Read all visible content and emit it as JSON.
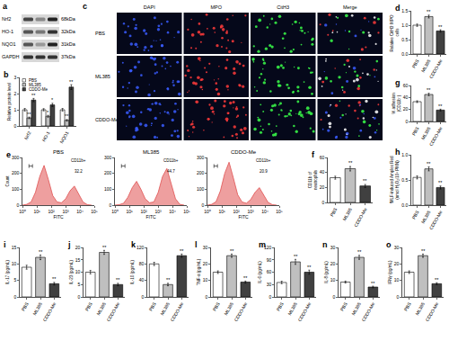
{
  "blot": {
    "panel": "a",
    "proteins": [
      {
        "name": "Nrf2",
        "size": "68kDa"
      },
      {
        "name": "HO-1",
        "size": "32kDa"
      },
      {
        "name": "NQO1",
        "size": "31kDa"
      },
      {
        "name": "GAPDH",
        "size": "37kDa"
      }
    ]
  },
  "images": {
    "panel": "c",
    "channels": [
      "DAPI",
      "MPO",
      "CitH3",
      "Merge"
    ],
    "groups": [
      "PBS",
      "ML385",
      "CDDO-Me"
    ]
  },
  "chart_data": [
    {
      "type": "bar",
      "panel": "b",
      "ylabel": [
        "Relative protein level"
      ],
      "categories": [
        "Nrf2",
        "HO-1",
        "NQO1"
      ],
      "series": [
        {
          "name": "PBS",
          "color": "#ffffff",
          "values": [
            1.0,
            1.0,
            1.0
          ],
          "errors": [
            0.08,
            0.07,
            0.08
          ],
          "significance": [
            null,
            null,
            null
          ]
        },
        {
          "name": "ML385",
          "color": "#bfbfbf",
          "values": [
            0.5,
            0.6,
            0.35
          ],
          "errors": [
            0.05,
            0.06,
            0.05
          ],
          "significance": [
            "**",
            "*",
            "**"
          ]
        },
        {
          "name": "CDDO-Me",
          "color": "#404040",
          "values": [
            1.6,
            1.3,
            2.4
          ],
          "errors": [
            0.1,
            0.1,
            0.15
          ],
          "significance": [
            "**",
            "*",
            "**"
          ]
        }
      ],
      "ylim": [
        0,
        3
      ],
      "yticks": [
        0,
        1,
        2,
        3
      ],
      "legend": "top left"
    },
    {
      "type": "bar",
      "panel": "d",
      "ylabel": [
        "Relative CitH3⁺MPO⁺",
        "cells"
      ],
      "categories": [
        "PBS",
        "ML385",
        "CDDO-Me"
      ],
      "values": [
        1.0,
        1.3,
        0.8
      ],
      "errors": [
        0.04,
        0.05,
        0.04
      ],
      "colors": [
        "#ffffff",
        "#bfbfbf",
        "#404040"
      ],
      "significance": [
        null,
        "**",
        "**"
      ],
      "ylim": [
        0,
        1.5
      ],
      "yticks": [
        {
          "value": 0,
          "label": "0.0"
        },
        0.5,
        {
          "value": 1,
          "label": "1.0"
        },
        1.5
      ]
    },
    {
      "type": "bar",
      "panel": "g",
      "ylabel": [
        "% adhesion",
        "(CD11b⁺)"
      ],
      "categories": [
        "PBS",
        "ML385",
        "CDDO-Me"
      ],
      "values": [
        33,
        45,
        19
      ],
      "errors": [
        1.5,
        2,
        1.5
      ],
      "colors": [
        "#ffffff",
        "#bfbfbf",
        "#404040"
      ],
      "significance": [
        null,
        "**",
        "**"
      ],
      "ylim": [
        0,
        60
      ],
      "yticks": [
        0,
        20,
        40,
        60
      ]
    },
    {
      "type": "line",
      "panel": "e",
      "title": "PBS",
      "xlabel": "FITC",
      "ylabel": [
        "Count"
      ],
      "log": "x",
      "x": [
        1,
        2,
        4,
        8,
        16,
        32,
        64,
        128,
        256,
        512,
        1024,
        2048,
        4096,
        8192,
        16384,
        32768,
        65536
      ],
      "values": [
        0,
        5,
        20,
        80,
        180,
        250,
        160,
        60,
        20,
        15,
        40,
        90,
        120,
        70,
        20,
        3,
        0
      ],
      "color": "#e05050",
      "gate": {
        "range": [
          700,
          100000
        ],
        "label": "CD11b+",
        "value": 32.2
      },
      "xlim": [
        1,
        100000
      ],
      "xticks": [
        {
          "value": 1,
          "label": "10⁰"
        },
        {
          "value": 10,
          "label": "10¹"
        },
        {
          "value": 100,
          "label": "10²"
        },
        {
          "value": 1000,
          "label": "10³"
        },
        {
          "value": 10000,
          "label": "10⁴"
        },
        {
          "value": 100000,
          "label": "10⁵"
        }
      ],
      "ylim": [
        0,
        300
      ],
      "yticks": [
        0,
        100,
        200,
        300
      ]
    },
    {
      "type": "line",
      "title": "ML385",
      "xlabel": "FITC",
      "log": "x",
      "x": [
        1,
        2,
        4,
        8,
        16,
        32,
        64,
        128,
        256,
        512,
        1024,
        2048,
        4096,
        8192,
        16384,
        32768,
        65536
      ],
      "values": [
        0,
        3,
        12,
        50,
        110,
        150,
        100,
        40,
        15,
        20,
        80,
        180,
        230,
        140,
        40,
        5,
        0
      ],
      "color": "#e05050",
      "gate": {
        "range": [
          700,
          100000
        ],
        "label": "CD11b+",
        "value": 44.7
      },
      "xlim": [
        1,
        100000
      ],
      "xticks": [
        {
          "value": 1,
          "label": "10⁰"
        },
        {
          "value": 10,
          "label": "10¹"
        },
        {
          "value": 100,
          "label": "10²"
        },
        {
          "value": 1000,
          "label": "10³"
        },
        {
          "value": 10000,
          "label": "10⁴"
        },
        {
          "value": 100000,
          "label": "10⁵"
        }
      ],
      "ylim": [
        0,
        300
      ],
      "yticks": [
        0,
        100,
        200,
        300
      ]
    },
    {
      "type": "line",
      "title": "CDDO-Me",
      "xlabel": "FITC",
      "log": "x",
      "x": [
        1,
        2,
        4,
        8,
        16,
        32,
        64,
        128,
        256,
        512,
        1024,
        2048,
        4096,
        8192,
        16384,
        32768,
        65536
      ],
      "values": [
        0,
        5,
        22,
        90,
        200,
        270,
        170,
        65,
        20,
        12,
        35,
        80,
        110,
        60,
        18,
        3,
        0
      ],
      "color": "#e05050",
      "gate": {
        "range": [
          700,
          100000
        ],
        "label": "CD11b+",
        "value": 20.9
      },
      "xlim": [
        1,
        100000
      ],
      "xticks": [
        {
          "value": 1,
          "label": "10⁰"
        },
        {
          "value": 10,
          "label": "10¹"
        },
        {
          "value": 100,
          "label": "10²"
        },
        {
          "value": 1000,
          "label": "10³"
        },
        {
          "value": 10000,
          "label": "10⁴"
        },
        {
          "value": 100000,
          "label": "10⁵"
        }
      ],
      "ylim": [
        0,
        300
      ],
      "yticks": [
        0,
        100,
        200,
        300
      ]
    },
    {
      "type": "bar",
      "panel": "f",
      "ylabel": [
        "CD11b of",
        "neutrophils"
      ],
      "categories": [
        "PBS",
        "ML385",
        "CDDO-Me"
      ],
      "values": [
        33,
        45,
        22
      ],
      "errors": [
        2,
        3,
        2
      ],
      "colors": [
        "#ffffff",
        "#bfbfbf",
        "#404040"
      ],
      "significance": [
        null,
        "**",
        "**"
      ],
      "ylim": [
        0,
        60
      ],
      "yticks": [
        0,
        20,
        40,
        60
      ]
    },
    {
      "type": "bar",
      "panel": "h",
      "ylabel": [
        "fMLF-induced Amplex Red",
        "(nmol H₂O₂/10⁶ PMN)"
      ],
      "categories": [
        "PBS",
        "ML385",
        "CDDO-Me"
      ],
      "values": [
        0.55,
        0.72,
        0.35
      ],
      "errors": [
        0.03,
        0.04,
        0.03
      ],
      "colors": [
        "#ffffff",
        "#bfbfbf",
        "#404040"
      ],
      "significance": [
        null,
        "**",
        "**"
      ],
      "ylim": [
        0,
        1
      ],
      "yticks": [
        {
          "value": 0,
          "label": "0.0"
        },
        0.5,
        {
          "value": 1,
          "label": "1.0"
        }
      ]
    },
    {
      "type": "bar",
      "panel": "i",
      "ylabel": [
        "IL-17 (pg/mL)"
      ],
      "categories": [
        "PBS",
        "ML385",
        "CDDO-Me"
      ],
      "values": [
        9,
        12,
        4
      ],
      "errors": [
        0.6,
        0.7,
        0.4
      ],
      "colors": [
        "#ffffff",
        "#bfbfbf",
        "#404040"
      ],
      "significance": [
        null,
        "**",
        "**"
      ],
      "ylim": [
        0,
        15
      ],
      "yticks": [
        0,
        5,
        10,
        15
      ]
    },
    {
      "type": "bar",
      "panel": "j",
      "ylabel": [
        "IL-23 (pg/mL)"
      ],
      "categories": [
        "PBS",
        "ML385",
        "CDDO-Me"
      ],
      "values": [
        10,
        18,
        5
      ],
      "errors": [
        0.7,
        0.8,
        0.5
      ],
      "colors": [
        "#ffffff",
        "#bfbfbf",
        "#404040"
      ],
      "significance": [
        null,
        "**",
        "**"
      ],
      "ylim": [
        0,
        20
      ],
      "yticks": [
        0,
        5,
        10,
        15,
        20
      ]
    },
    {
      "type": "bar",
      "panel": "k",
      "ylabel": [
        "IL-10 (pg/mL)"
      ],
      "categories": [
        "PBS",
        "ML385",
        "CDDO-Me"
      ],
      "values": [
        80,
        30,
        100
      ],
      "errors": [
        4,
        3,
        4
      ],
      "colors": [
        "#ffffff",
        "#bfbfbf",
        "#404040"
      ],
      "significance": [
        null,
        "**",
        "**"
      ],
      "ylim": [
        0,
        120
      ],
      "yticks": [
        0,
        40,
        80,
        120
      ]
    },
    {
      "type": "bar",
      "panel": "l",
      "ylabel": [
        "TNF-α (pg/mL)"
      ],
      "categories": [
        "PBS",
        "ML385",
        "CDDO-Me"
      ],
      "values": [
        15,
        25,
        9
      ],
      "errors": [
        0.8,
        1,
        0.6
      ],
      "colors": [
        "#ffffff",
        "#bfbfbf",
        "#404040"
      ],
      "significance": [
        null,
        "**",
        "**"
      ],
      "ylim": [
        0,
        30
      ],
      "yticks": [
        0,
        10,
        20,
        30
      ]
    },
    {
      "type": "bar",
      "panel": "m",
      "ylabel": [
        "IL-6 (pg/mL)"
      ],
      "categories": [
        "PBS",
        "ML385",
        "CDDO-Me"
      ],
      "values": [
        35,
        85,
        60
      ],
      "errors": [
        3,
        6,
        5
      ],
      "colors": [
        "#ffffff",
        "#bfbfbf",
        "#404040"
      ],
      "significance": [
        null,
        "**",
        "**"
      ],
      "ylim": [
        0,
        120
      ],
      "yticks": [
        0,
        30,
        60,
        90,
        120
      ]
    },
    {
      "type": "bar",
      "panel": "n",
      "ylabel": [
        "IL-8 (pg/mL)"
      ],
      "categories": [
        "PBS",
        "ML385",
        "CDDO-Me"
      ],
      "values": [
        9,
        24,
        6
      ],
      "errors": [
        0.6,
        1.2,
        0.5
      ],
      "colors": [
        "#ffffff",
        "#bfbfbf",
        "#404040"
      ],
      "significance": [
        null,
        "**",
        "**"
      ],
      "ylim": [
        0,
        30
      ],
      "yticks": [
        0,
        10,
        20,
        30
      ]
    },
    {
      "type": "bar",
      "panel": "o",
      "ylabel": [
        "IFNγ (pg/mL)"
      ],
      "categories": [
        "PBS",
        "ML385",
        "CDDO-Me"
      ],
      "values": [
        15,
        25,
        8
      ],
      "errors": [
        0.8,
        1,
        0.6
      ],
      "colors": [
        "#ffffff",
        "#bfbfbf",
        "#404040"
      ],
      "significance": [
        null,
        "**",
        "**"
      ],
      "ylim": [
        0,
        30
      ],
      "yticks": [
        0,
        10,
        20,
        30
      ]
    }
  ]
}
